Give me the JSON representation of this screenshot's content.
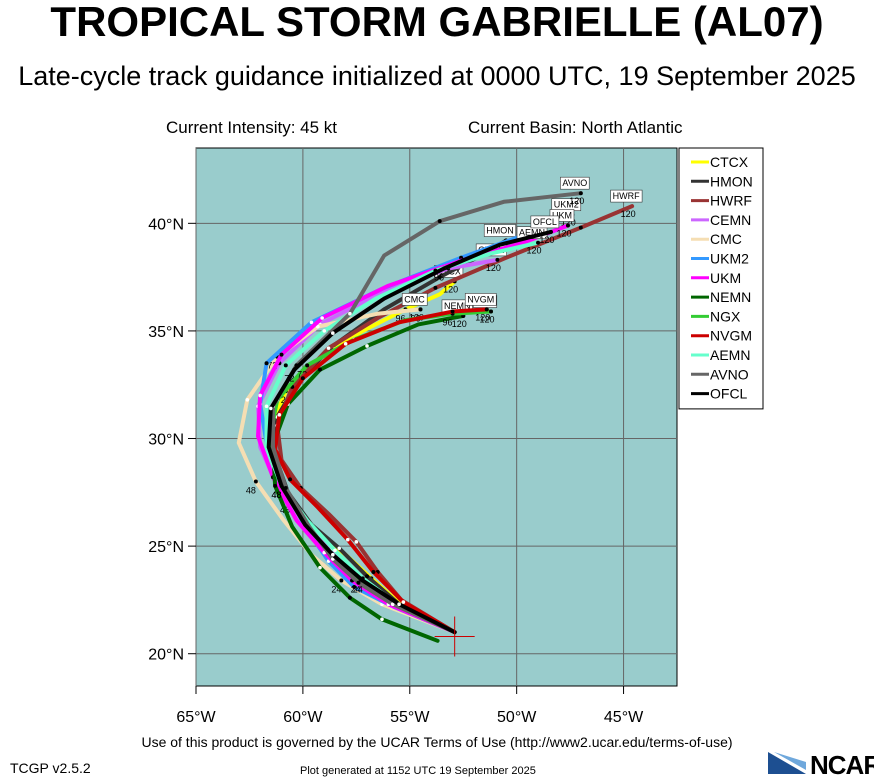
{
  "header": {
    "title": "TROPICAL STORM GABRIELLE (AL07)",
    "subtitle": "Late-cycle track guidance initialized at 0000 UTC, 19 September 2025",
    "intensity": "Current Intensity: 45 kt",
    "basin": "Current Basin: North Atlantic"
  },
  "footer": {
    "terms": "Use of this product is governed by the UCAR Terms of Use (http://www2.ucar.edu/terms-of-use)",
    "version": "TCGP v2.5.2",
    "generated": "Plot generated at 1152 UTC  19 September 2025",
    "logo": "NCAR"
  },
  "colors": {
    "ocean": "#99cccc",
    "grid": "#666666",
    "accent": "#cc0000"
  },
  "chart_data": {
    "type": "line",
    "xlim": [
      -65,
      -42.5
    ],
    "ylim": [
      18.5,
      43.5
    ],
    "x_ticks": [
      -65,
      -60,
      -55,
      -50,
      -45
    ],
    "x_tick_labels": [
      "65°W",
      "60°W",
      "55°W",
      "50°W",
      "45°W"
    ],
    "y_ticks": [
      20,
      25,
      30,
      35,
      40
    ],
    "y_tick_labels": [
      "20°N",
      "25°N",
      "30°N",
      "35°N",
      "40°N"
    ],
    "grid": true,
    "legend_position": "right",
    "current_position": {
      "lon": -52.9,
      "lat": 20.8
    },
    "forecast_hours": [
      "24",
      "48",
      "72",
      "96",
      "120"
    ],
    "series": [
      {
        "name": "CTCX",
        "color": "#ffff00",
        "end_label": "CTCX",
        "end_hour": "120",
        "points": [
          [
            -52.9,
            21.0
          ],
          [
            -55.3,
            22.2
          ],
          [
            -56.8,
            23.5
          ],
          [
            -58.0,
            24.6
          ],
          [
            -59.4,
            25.7
          ],
          [
            -60.6,
            27.1
          ],
          [
            -61.4,
            28.9
          ],
          [
            -61.5,
            30.5
          ],
          [
            -60.8,
            32.2
          ],
          [
            -59.4,
            33.6
          ],
          [
            -57.2,
            35.0
          ],
          [
            -55.2,
            36.0
          ],
          [
            -53.6,
            36.7
          ],
          [
            -52.9,
            37.3
          ]
        ]
      },
      {
        "name": "HMON",
        "color": "#333333",
        "end_label": "HMON",
        "end_hour": "120",
        "points": [
          [
            -52.9,
            21.0
          ],
          [
            -55.5,
            22.3
          ],
          [
            -57.0,
            23.6
          ],
          [
            -58.3,
            24.9
          ],
          [
            -59.6,
            26.0
          ],
          [
            -60.7,
            27.5
          ],
          [
            -61.3,
            29.2
          ],
          [
            -61.2,
            31.0
          ],
          [
            -60.2,
            32.7
          ],
          [
            -58.6,
            34.3
          ],
          [
            -56.2,
            36.0
          ],
          [
            -53.6,
            37.5
          ],
          [
            -51.5,
            38.6
          ],
          [
            -50.5,
            39.2
          ]
        ]
      },
      {
        "name": "HWRF",
        "color": "#993333",
        "end_label": "HWRF",
        "end_hour": "120",
        "points": [
          [
            -52.9,
            21.0
          ],
          [
            -55.4,
            22.5
          ],
          [
            -56.5,
            23.8
          ],
          [
            -57.5,
            25.2
          ],
          [
            -58.8,
            26.5
          ],
          [
            -60.1,
            27.7
          ],
          [
            -61.0,
            29.0
          ],
          [
            -61.2,
            30.6
          ],
          [
            -60.5,
            32.4
          ],
          [
            -58.8,
            34.2
          ],
          [
            -56.5,
            35.6
          ],
          [
            -53.8,
            37.0
          ],
          [
            -50.5,
            38.4
          ],
          [
            -47.0,
            39.8
          ],
          [
            -44.6,
            40.8
          ]
        ]
      },
      {
        "name": "CEMN",
        "color": "#cc66ff",
        "end_label": "CEMN",
        "end_hour": "120",
        "points": [
          [
            -52.9,
            21.0
          ],
          [
            -55.9,
            22.4
          ],
          [
            -57.5,
            23.5
          ],
          [
            -58.7,
            24.8
          ],
          [
            -60.0,
            26.1
          ],
          [
            -61.2,
            27.8
          ],
          [
            -62.0,
            29.6
          ],
          [
            -62.1,
            31.5
          ],
          [
            -61.1,
            33.5
          ],
          [
            -59.2,
            35.3
          ],
          [
            -56.3,
            36.8
          ],
          [
            -53.2,
            37.9
          ],
          [
            -50.9,
            38.3
          ]
        ]
      },
      {
        "name": "CMC",
        "color": "#f5deb3",
        "end_label": "CMC",
        "end_hour": "120",
        "points": [
          [
            -52.9,
            21.0
          ],
          [
            -56.3,
            22.3
          ],
          [
            -58.2,
            23.4
          ],
          [
            -59.6,
            24.6
          ],
          [
            -60.9,
            26.2
          ],
          [
            -62.2,
            28.0
          ],
          [
            -63.0,
            29.8
          ],
          [
            -62.6,
            31.8
          ],
          [
            -61.2,
            33.8
          ],
          [
            -59.3,
            35.2
          ],
          [
            -56.5,
            35.8
          ],
          [
            -54.5,
            36.0
          ]
        ]
      },
      {
        "name": "UKM2",
        "color": "#3399ff",
        "end_label": "UKM2",
        "end_hour": "120",
        "points": [
          [
            -52.9,
            21.0
          ],
          [
            -55.8,
            22.2
          ],
          [
            -57.6,
            23.1
          ],
          [
            -58.8,
            24.3
          ],
          [
            -59.9,
            25.9
          ],
          [
            -60.9,
            27.9
          ],
          [
            -61.7,
            29.8
          ],
          [
            -62.0,
            31.6
          ],
          [
            -61.7,
            33.5
          ],
          [
            -59.6,
            35.4
          ],
          [
            -56.2,
            37.0
          ],
          [
            -52.6,
            38.4
          ],
          [
            -49.8,
            39.4
          ],
          [
            -47.4,
            40.4
          ]
        ]
      },
      {
        "name": "UKM",
        "color": "#ff00ff",
        "end_label": "UKM",
        "end_hour": "120",
        "points": [
          [
            -52.9,
            21.0
          ],
          [
            -56.0,
            22.3
          ],
          [
            -57.7,
            23.4
          ],
          [
            -59.0,
            24.7
          ],
          [
            -60.3,
            26.2
          ],
          [
            -61.4,
            28.2
          ],
          [
            -62.1,
            30.1
          ],
          [
            -62.0,
            32.0
          ],
          [
            -61.0,
            33.9
          ],
          [
            -59.1,
            35.6
          ],
          [
            -56.0,
            37.1
          ],
          [
            -52.5,
            38.3
          ],
          [
            -49.7,
            39.1
          ],
          [
            -47.6,
            39.9
          ]
        ]
      },
      {
        "name": "NEMN",
        "color": "#006600",
        "end_label": "NEMN",
        "end_hour": "120",
        "points": [
          [
            -53.7,
            20.6
          ],
          [
            -56.3,
            21.6
          ],
          [
            -57.8,
            22.6
          ],
          [
            -59.2,
            24.0
          ],
          [
            -60.5,
            25.9
          ],
          [
            -61.3,
            27.8
          ],
          [
            -61.4,
            29.7
          ],
          [
            -60.7,
            31.6
          ],
          [
            -59.2,
            33.2
          ],
          [
            -57.0,
            34.3
          ],
          [
            -54.6,
            35.3
          ],
          [
            -52.5,
            35.7
          ]
        ]
      },
      {
        "name": "NGX",
        "color": "#33cc33",
        "end_label": "NGX",
        "end_hour": "120",
        "points": [
          [
            -52.9,
            21.0
          ],
          [
            -55.6,
            22.3
          ],
          [
            -57.3,
            23.4
          ],
          [
            -58.6,
            24.6
          ],
          [
            -59.9,
            26.0
          ],
          [
            -61.0,
            27.8
          ],
          [
            -61.6,
            29.8
          ],
          [
            -61.2,
            31.8
          ],
          [
            -59.8,
            33.4
          ],
          [
            -57.6,
            34.6
          ],
          [
            -55.2,
            35.5
          ],
          [
            -53.0,
            35.8
          ],
          [
            -51.2,
            35.9
          ]
        ]
      },
      {
        "name": "NVGM",
        "color": "#cc0000",
        "end_label": "NVGM",
        "end_hour": "120",
        "points": [
          [
            -52.9,
            21.0
          ],
          [
            -55.3,
            22.4
          ],
          [
            -56.7,
            23.8
          ],
          [
            -57.9,
            25.3
          ],
          [
            -59.3,
            26.8
          ],
          [
            -60.6,
            28.1
          ],
          [
            -61.3,
            29.5
          ],
          [
            -61.1,
            31.1
          ],
          [
            -60.0,
            32.8
          ],
          [
            -58.0,
            34.4
          ],
          [
            -55.5,
            35.4
          ],
          [
            -53.0,
            35.9
          ],
          [
            -51.4,
            36.0
          ]
        ]
      },
      {
        "name": "AEMN",
        "color": "#66ffcc",
        "end_label": "AEMN",
        "end_hour": "120",
        "points": [
          [
            -52.9,
            21.0
          ],
          [
            -55.6,
            22.3
          ],
          [
            -57.2,
            23.5
          ],
          [
            -58.5,
            24.8
          ],
          [
            -59.8,
            26.2
          ],
          [
            -61.0,
            27.8
          ],
          [
            -61.7,
            29.6
          ],
          [
            -61.7,
            31.5
          ],
          [
            -60.8,
            33.4
          ],
          [
            -59.0,
            35.0
          ],
          [
            -56.6,
            36.5
          ],
          [
            -53.8,
            37.8
          ],
          [
            -51.2,
            38.6
          ],
          [
            -49.0,
            39.1
          ]
        ]
      },
      {
        "name": "AVNO",
        "color": "#666666",
        "end_label": "AVNO",
        "end_hour": "120",
        "points": [
          [
            -52.9,
            21.0
          ],
          [
            -55.8,
            22.3
          ],
          [
            -57.4,
            23.3
          ],
          [
            -58.6,
            24.4
          ],
          [
            -59.7,
            25.9
          ],
          [
            -60.8,
            27.7
          ],
          [
            -61.4,
            29.6
          ],
          [
            -61.4,
            31.5
          ],
          [
            -60.3,
            33.4
          ],
          [
            -57.8,
            35.8
          ],
          [
            -56.2,
            38.5
          ],
          [
            -53.6,
            40.1
          ],
          [
            -50.6,
            41.0
          ],
          [
            -47.0,
            41.4
          ]
        ]
      },
      {
        "name": "OFCL",
        "color": "#000000",
        "end_label": "OFCL",
        "end_hour": "120",
        "points": [
          [
            -52.9,
            21.0
          ],
          [
            -55.5,
            22.3
          ],
          [
            -57.2,
            23.4
          ],
          [
            -58.6,
            24.6
          ],
          [
            -59.9,
            26.0
          ],
          [
            -61.0,
            27.8
          ],
          [
            -61.6,
            29.6
          ],
          [
            -61.5,
            31.4
          ],
          [
            -60.4,
            33.2
          ],
          [
            -58.6,
            34.9
          ],
          [
            -56.2,
            36.5
          ],
          [
            -53.4,
            37.9
          ],
          [
            -50.8,
            39.0
          ],
          [
            -48.4,
            39.6
          ]
        ]
      }
    ]
  }
}
